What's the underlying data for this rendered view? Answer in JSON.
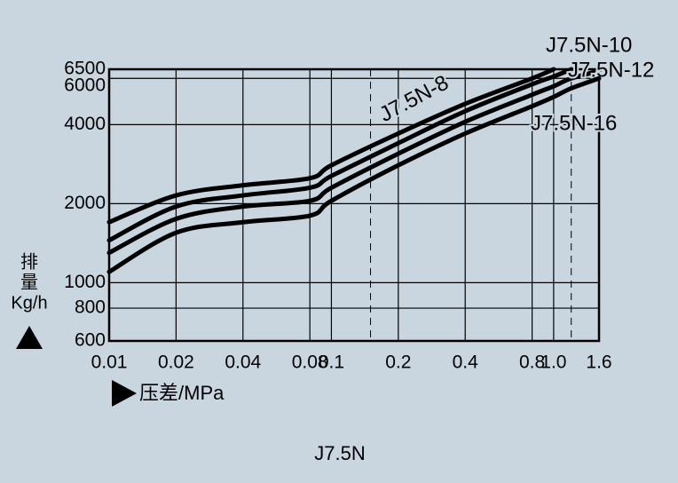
{
  "chart_data": {
    "type": "line",
    "title": "J7.5N",
    "y_label_lines": [
      "排",
      "量",
      "Kg/h"
    ],
    "x_label": "压差/MPa",
    "xlog": true,
    "ylog": true,
    "grid": true,
    "line_color": "#000000",
    "xlim": [
      0.01,
      1.6
    ],
    "ylim": [
      600,
      6500
    ],
    "xticks": [
      0.01,
      0.02,
      0.04,
      0.08,
      0.1,
      0.2,
      0.4,
      0.8,
      {
        "value": 1,
        "label": "1.0"
      },
      1.6
    ],
    "yticks": [
      6500,
      6000,
      4000,
      2000,
      1000,
      800,
      600
    ],
    "dashed_x": [
      0.15,
      1.2
    ],
    "series": [
      {
        "name": "J7.5N-8",
        "color": "#000000",
        "x": [
          0.01,
          0.02,
          0.04,
          0.08,
          0.1,
          0.2,
          0.4,
          0.8,
          1.0
        ],
        "values": [
          1700,
          2150,
          2350,
          2500,
          2800,
          3700,
          4800,
          6000,
          6500
        ]
      },
      {
        "name": "J7.5N-10",
        "color": "#000000",
        "x": [
          0.01,
          0.02,
          0.04,
          0.08,
          0.1,
          0.2,
          0.4,
          0.8,
          1.0,
          1.2
        ],
        "values": [
          1450,
          1950,
          2150,
          2300,
          2550,
          3400,
          4500,
          5700,
          6100,
          6500
        ]
      },
      {
        "name": "J7.5N-12",
        "color": "#000000",
        "x": [
          0.01,
          0.02,
          0.04,
          0.08,
          0.1,
          0.2,
          0.4,
          0.8,
          1.0,
          1.2,
          1.6
        ],
        "values": [
          1300,
          1750,
          1950,
          2050,
          2300,
          3100,
          4100,
          5200,
          5600,
          6000,
          6400
        ]
      },
      {
        "name": "J7.5N-16",
        "color": "#000000",
        "x": [
          0.01,
          0.02,
          0.04,
          0.08,
          0.1,
          0.2,
          0.4,
          0.8,
          1.0,
          1.2,
          1.6
        ],
        "values": [
          1100,
          1550,
          1700,
          1800,
          2050,
          2800,
          3700,
          4700,
          5100,
          5500,
          6000
        ]
      }
    ]
  }
}
